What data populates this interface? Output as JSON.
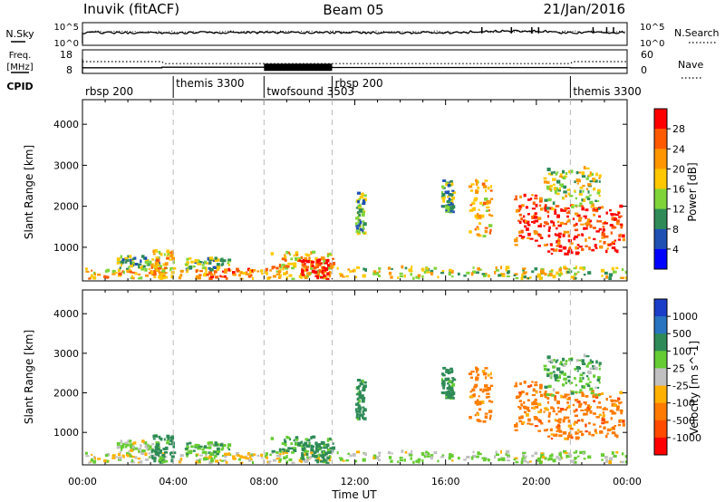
{
  "header": {
    "station": "Inuvik (fitACF)",
    "beam": "Beam 05",
    "date": "21/Jan/2016"
  },
  "nsky_panel": {
    "left_label": "N.Sky",
    "left_ticks": [
      "10^5",
      "10^0"
    ],
    "right_ticks": [
      "10^5",
      "10^0"
    ],
    "right_label": "N.Search"
  },
  "freq_panel": {
    "left_label_line1": "Freq.",
    "left_label_line2": "[MHz]",
    "left_ticks": [
      "18",
      "8"
    ],
    "right_ticks": [
      "60",
      "0"
    ],
    "right_label": "Nave"
  },
  "cpid": {
    "label": "CPID",
    "segments": [
      {
        "name": "rbsp 200",
        "start_hour": 0.0
      },
      {
        "name": "themis 3300",
        "start_hour": 4.0
      },
      {
        "name": "twofsound 3503",
        "start_hour": 8.0
      },
      {
        "name": "rbsp 200",
        "start_hour": 11.0
      },
      {
        "name": "themis 3300",
        "start_hour": 21.5
      }
    ]
  },
  "power_colorbar": {
    "label": "Power [dB]",
    "ticks": [
      "28",
      "24",
      "20",
      "16",
      "12",
      "8",
      "4"
    ],
    "colors": [
      "#ff0000",
      "#ff5a00",
      "#ff9600",
      "#ffc800",
      "#7fd43a",
      "#2e8b57",
      "#1e50b4",
      "#0000ff"
    ]
  },
  "velocity_colorbar": {
    "label": "Velocity [m s^-1]",
    "ticks": [
      "1000",
      "500",
      "100",
      "25",
      "-25",
      "-100",
      "-500",
      "-1000"
    ],
    "colors": [
      "#1b3ec8",
      "#2874c0",
      "#2e8b57",
      "#66cc33",
      "#c0c0c0",
      "#ffb000",
      "#ff7a00",
      "#ff4a00",
      "#ff0000"
    ]
  },
  "chart_data": {
    "type": "heatmap",
    "x_label": "Time UT",
    "x_ticks": [
      "00:00",
      "04:00",
      "08:00",
      "12:00",
      "16:00",
      "20:00",
      "00:00"
    ],
    "xlim_hours": [
      0,
      24
    ],
    "y_label": "Slant Range [km]",
    "y_ticks": [
      1000,
      2000,
      3000,
      4000
    ],
    "ylim_km": [
      180,
      4600
    ],
    "mode_change_hours": [
      4.0,
      8.0,
      11.0,
      21.5
    ],
    "freq_mhz": {
      "x": [
        0,
        3.5,
        3.5,
        8.0,
        11.0,
        11.0,
        21.5,
        21.5,
        24
      ],
      "y": [
        10.4,
        10.4,
        10.6,
        10.6,
        10.6,
        10.5,
        10.5,
        10.4,
        10.4
      ]
    },
    "nave": {
      "x": [
        0,
        3.5,
        3.6,
        21.5,
        21.6,
        24
      ],
      "y": [
        30,
        30,
        25,
        25,
        30,
        30
      ]
    },
    "echo_regions": [
      {
        "t0": 0.0,
        "t1": 3.8,
        "r0": 200,
        "r1": 450,
        "power": 20,
        "velocity": 0
      },
      {
        "t0": 1.5,
        "t1": 3.3,
        "r0": 450,
        "r1": 750,
        "power": 12,
        "velocity": 30
      },
      {
        "t0": 3.0,
        "t1": 4.0,
        "r0": 200,
        "r1": 900,
        "power": 20,
        "velocity": 150
      },
      {
        "t0": 4.0,
        "t1": 8.0,
        "r0": 200,
        "r1": 420,
        "power": 24,
        "velocity": 0
      },
      {
        "t0": 4.5,
        "t1": 6.5,
        "r0": 400,
        "r1": 700,
        "power": 12,
        "velocity": 80
      },
      {
        "t0": 8.0,
        "t1": 11.0,
        "r0": 200,
        "r1": 500,
        "power": 20,
        "velocity": 0
      },
      {
        "t0": 8.2,
        "t1": 11.0,
        "r0": 450,
        "r1": 850,
        "power": 20,
        "velocity": 120
      },
      {
        "t0": 9.5,
        "t1": 10.8,
        "r0": 200,
        "r1": 700,
        "power": 28,
        "velocity": 150
      },
      {
        "t0": 11.0,
        "t1": 24.0,
        "r0": 200,
        "r1": 480,
        "power": 16,
        "velocity": 30
      },
      {
        "t0": 12.0,
        "t1": 12.4,
        "r0": 1300,
        "r1": 2300,
        "power": 12,
        "velocity": 150
      },
      {
        "t0": 15.8,
        "t1": 16.3,
        "r0": 1800,
        "r1": 2600,
        "power": 12,
        "velocity": 150
      },
      {
        "t0": 17.0,
        "t1": 18.0,
        "r0": 1200,
        "r1": 2600,
        "power": 20,
        "velocity": -150
      },
      {
        "t0": 19.0,
        "t1": 20.2,
        "r0": 1000,
        "r1": 2300,
        "power": 28,
        "velocity": -300
      },
      {
        "t0": 20.3,
        "t1": 23.8,
        "r0": 800,
        "r1": 2000,
        "power": 28,
        "velocity": -300
      },
      {
        "t0": 20.3,
        "t1": 22.8,
        "r0": 1900,
        "r1": 2900,
        "power": 16,
        "velocity": 80
      }
    ]
  }
}
